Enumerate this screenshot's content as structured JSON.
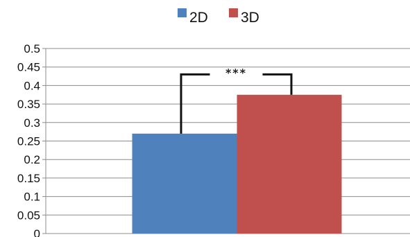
{
  "chart_data": {
    "type": "bar",
    "categories": [
      ""
    ],
    "series": [
      {
        "name": "2D",
        "values": [
          0.27
        ],
        "color": "#4f81bd"
      },
      {
        "name": "3D",
        "values": [
          0.375
        ],
        "color": "#c0504d"
      }
    ],
    "ylim": [
      0,
      0.5
    ],
    "yticks": [
      "0",
      "0.05",
      "0.1",
      "0.15",
      "0.2",
      "0.25",
      "0.3",
      "0.35",
      "0.4",
      "0.45",
      "0.5"
    ],
    "grid": true,
    "legend": "top-center",
    "annotation": {
      "text": "***",
      "bracket_level": 0.43
    }
  }
}
